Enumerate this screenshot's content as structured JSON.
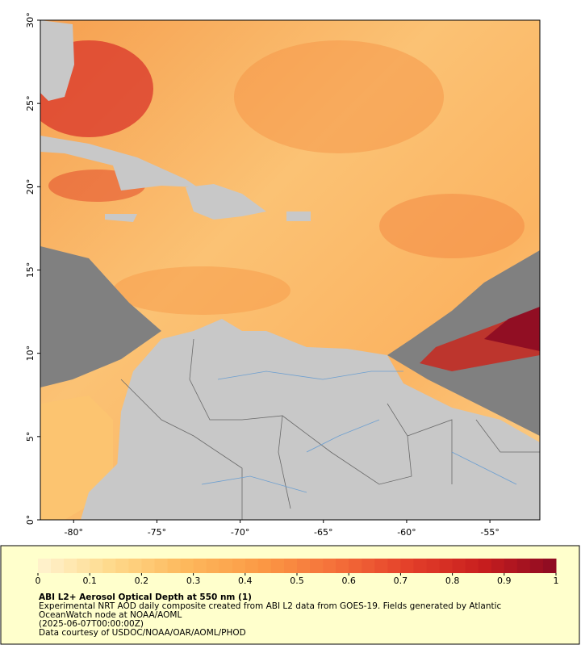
{
  "map": {
    "lon_range": [
      -82,
      -52
    ],
    "lat_range": [
      0,
      30
    ],
    "lat_ticks": [
      {
        "value": 0,
        "label": "0°"
      },
      {
        "value": 5,
        "label": "5°"
      },
      {
        "value": 10,
        "label": "10°"
      },
      {
        "value": 15,
        "label": "15°"
      },
      {
        "value": 20,
        "label": "20°"
      },
      {
        "value": 25,
        "label": "25°"
      },
      {
        "value": 30,
        "label": "30°"
      }
    ],
    "lon_ticks": [
      {
        "value": -80,
        "label": "-80°"
      },
      {
        "value": -75,
        "label": "-75°"
      },
      {
        "value": -70,
        "label": "-70°"
      },
      {
        "value": -65,
        "label": "-65°"
      },
      {
        "value": -60,
        "label": "-60°"
      },
      {
        "value": -55,
        "label": "-55°"
      }
    ]
  },
  "colorbar": {
    "range": [
      0,
      1
    ],
    "ticks": [
      0,
      0.1,
      0.2,
      0.3,
      0.4,
      0.5,
      0.6,
      0.7,
      0.8,
      0.9,
      1
    ],
    "colors": [
      "#fff3d0",
      "#fed98a",
      "#fdb85c",
      "#fb9a45",
      "#f5703a",
      "#e4402a",
      "#c81e1e",
      "#8c0a22"
    ]
  },
  "caption": {
    "title": "ABI L2+ Aerosol Optical Depth at 550 nm (1)",
    "lines": [
      "Experimental NRT AOD daily composite created from ABI L2 data from GOES-19. Fields generated by Atlantic",
      "OceanWatch node at NOAA/AOML",
      "(2025-06-07T00:00:00Z)",
      "Data courtesy of USDOC/NOAA/OAR/AOML/PHOD"
    ]
  }
}
